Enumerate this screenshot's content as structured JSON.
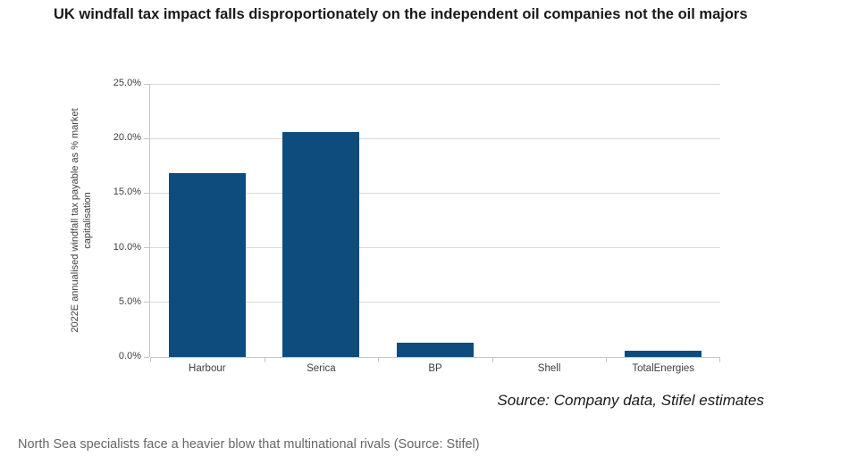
{
  "page": {
    "title": "UK windfall tax impact falls disproportionately on the independent oil companies not the oil majors",
    "caption": "North Sea specialists face a heavier blow that multinational rivals (Source: Stifel)"
  },
  "chart_data": {
    "type": "bar",
    "title": "UK windfall tax impact falls disproportionately on the independent oil companies not the oil majors",
    "categories": [
      "Harbour",
      "Serica",
      "BP",
      "Shell",
      "TotalEnergies"
    ],
    "values": [
      16.8,
      20.6,
      1.3,
      0.0,
      0.6
    ],
    "values_unit": "%",
    "xlabel": "",
    "ylabel": "2022E annualised windfall tax payable as % market capitalisation",
    "ylim": [
      0,
      25
    ],
    "yticks": [
      0,
      5,
      10,
      15,
      20,
      25
    ],
    "ytick_labels": [
      "0.0%",
      "5.0%",
      "10.0%",
      "15.0%",
      "20.0%",
      "25.0%"
    ],
    "grid": true,
    "legend": false,
    "source_note": "Source: Company data, Stifel estimates",
    "colors": {
      "bar": "#0e4c7d",
      "gridline": "#d9d9d9",
      "axis": "#c6c6c6",
      "tick_text": "#404040",
      "title_text": "#1a1a1a",
      "caption_text": "#666666"
    }
  }
}
